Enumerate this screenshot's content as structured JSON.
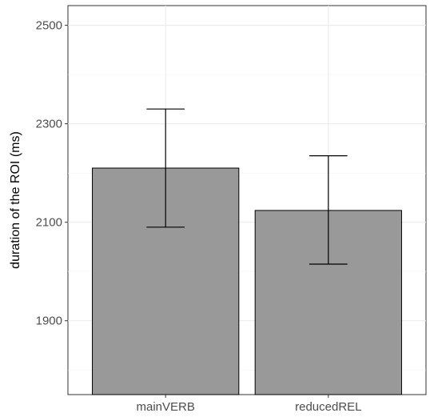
{
  "chart_data": {
    "type": "bar",
    "categories": [
      "mainVERB",
      "reducedREL"
    ],
    "values": [
      2210,
      2124
    ],
    "error_bars": [
      {
        "lower": 2090,
        "upper": 2330
      },
      {
        "lower": 2015,
        "upper": 2235
      }
    ],
    "xlabel": "",
    "ylabel": "duration of the ROI (ms)",
    "ylim": [
      1750,
      2540
    ],
    "yticks": [
      1900,
      2100,
      2300,
      2500
    ],
    "ytick_labels": [
      "1900",
      "2100",
      "2300",
      "2500"
    ],
    "grid": true,
    "bar_color": "#999999",
    "bar_outline": "#000000"
  }
}
